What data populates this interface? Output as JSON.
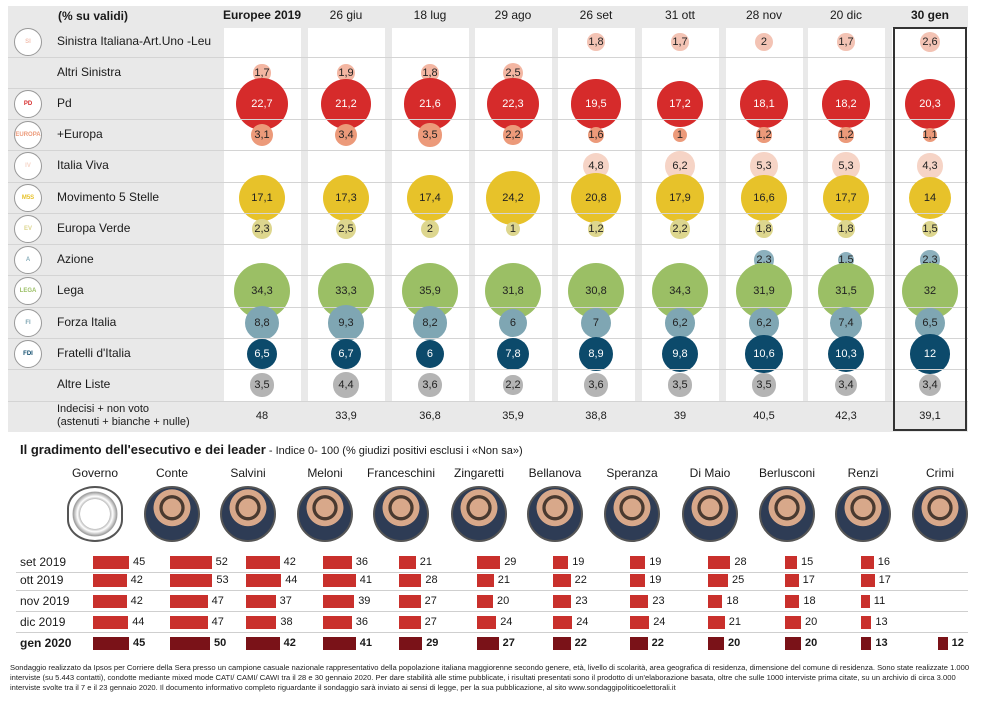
{
  "table": {
    "header_label": "(% su validi)",
    "columns": [
      "Europee 2019",
      "26 giu",
      "18 lug",
      "29 ago",
      "26 set",
      "31 ott",
      "28 nov",
      "20 dic",
      "30 gen"
    ],
    "parties": [
      {
        "name": "Sinistra Italiana-Art.Uno -Leu",
        "values": [
          null,
          null,
          null,
          null,
          1.8,
          1.7,
          2,
          1.7,
          2.6
        ],
        "color": "#f3c3b4",
        "logo": "SI"
      },
      {
        "name": "Altri Sinistra",
        "values": [
          1.7,
          1.9,
          1.8,
          2.5,
          null,
          null,
          null,
          null,
          null
        ],
        "color": "#f3b6a2",
        "logo": ""
      },
      {
        "name": "Pd",
        "values": [
          22.7,
          21.2,
          21.6,
          22.3,
          19.5,
          17.2,
          18.1,
          18.2,
          20.3
        ],
        "color": "#d62b2b",
        "logo": "PD"
      },
      {
        "name": "+Europa",
        "values": [
          3.1,
          3.4,
          3.5,
          2.2,
          1.6,
          1,
          1.2,
          1.2,
          1.1
        ],
        "color": "#ec9a7a",
        "logo": "EUROPA"
      },
      {
        "name": "Italia Viva",
        "values": [
          null,
          null,
          null,
          null,
          4.8,
          6.2,
          5.3,
          5.3,
          4.3
        ],
        "color": "#f6d4c6",
        "logo": "IV"
      },
      {
        "name": "Movimento 5 Stelle",
        "values": [
          17.1,
          17.3,
          17.4,
          24.2,
          20.8,
          17.9,
          16.6,
          17.7,
          14
        ],
        "color": "#e7c22a",
        "logo": "M5S"
      },
      {
        "name": "Europa Verde",
        "values": [
          2.3,
          2.5,
          2,
          1,
          1.2,
          2.2,
          1.8,
          1.8,
          1.5
        ],
        "color": "#ddd68e",
        "logo": "EV"
      },
      {
        "name": "Azione",
        "values": [
          null,
          null,
          null,
          null,
          null,
          null,
          2.3,
          1.5,
          2.3
        ],
        "color": "#8cb0bd",
        "logo": "A"
      },
      {
        "name": "Lega",
        "values": [
          34.3,
          33.3,
          35.9,
          31.8,
          30.8,
          34.3,
          31.9,
          31.5,
          32
        ],
        "color": "#9bbf65",
        "logo": "LEGA"
      },
      {
        "name": "Forza Italia",
        "values": [
          8.8,
          9.3,
          8.2,
          6,
          7,
          6.2,
          6.2,
          7.4,
          6.5
        ],
        "color": "#7fa6b3",
        "logo": "FI"
      },
      {
        "name": "Fratelli d'Italia",
        "values": [
          6.5,
          6.7,
          6,
          7.8,
          8.9,
          9.8,
          10.6,
          10.3,
          12
        ],
        "color": "#0c4a6b",
        "logo": "FDI"
      },
      {
        "name": "Altre Liste",
        "values": [
          3.5,
          4.4,
          3.6,
          2.2,
          3.6,
          3.5,
          3.5,
          3.4,
          3.4
        ],
        "color": "#b4b4b4",
        "logo": ""
      }
    ],
    "footer_label_1": "Indecisi  + non voto",
    "footer_label_2": "(astenuti  + bianche  + nulle)",
    "footer_values": [
      48,
      33.9,
      36.8,
      35.9,
      38.8,
      39,
      40.5,
      42.3,
      39.1
    ]
  },
  "approval": {
    "title": "Il gradimento dell'esecutivo e dei leader",
    "subtitle": " - Indice 0- 100 (% giudizi positivi esclusi i «Non sa»)",
    "leaders": [
      "Governo",
      "Conte",
      "Salvini",
      "Meloni",
      "Franceschini",
      "Zingaretti",
      "Bellanova",
      "Speranza",
      "Di Maio",
      "Berlusconi",
      "Renzi",
      "Crimi"
    ],
    "months": [
      "set 2019",
      "ott 2019",
      "nov 2019",
      "dic 2019",
      "gen 2020"
    ],
    "values": [
      [
        45,
        52,
        42,
        36,
        21,
        29,
        19,
        19,
        28,
        15,
        16,
        null
      ],
      [
        42,
        53,
        44,
        41,
        28,
        21,
        22,
        19,
        25,
        17,
        17,
        null
      ],
      [
        42,
        47,
        37,
        39,
        27,
        20,
        23,
        23,
        18,
        18,
        11,
        null
      ],
      [
        44,
        47,
        38,
        36,
        27,
        24,
        24,
        24,
        21,
        20,
        13,
        null
      ],
      [
        45,
        50,
        42,
        41,
        29,
        27,
        22,
        22,
        20,
        20,
        13,
        12
      ]
    ],
    "colors": {
      "bar": "#c9302c",
      "bar_latest": "#7a1218"
    }
  },
  "footnote": "Sondaggio realizzato da Ipsos per Corriere della Sera presso un campione casuale nazionale rappresentativo della popolazione italiana maggiorenne secondo genere, età, livello di scolarità, area geografica di residenza, dimensione del comune di residenza. Sono state realizzate 1.000 interviste (su 5.443 contatti), condotte mediante mixed mode CATI/ CAMI/ CAWI  tra il 28 e 30 gennaio 2020. Per dare stabilità alle stime pubblicate, i risultati presentati sono il prodotto di un'elaborazione basata, oltre che sulle 1000 interviste prima citate, su un archivio di circa 3.000 interviste svolte tra il 7 e il 23 gennaio 2020. Il documento informativo completo riguardante il sondaggio sarà inviato ai sensi di legge, per la sua pubblicazione, al sito www.sondaggipoliticoelettorali.it",
  "chart_data": [
    {
      "type": "table",
      "title": "(% su validi)",
      "categories": [
        "Europee 2019",
        "26 giu",
        "18 lug",
        "29 ago",
        "26 set",
        "31 ott",
        "28 nov",
        "20 dic",
        "30 gen"
      ],
      "series": [
        {
          "name": "Sinistra Italiana-Art.Uno -Leu",
          "values": [
            null,
            null,
            null,
            null,
            1.8,
            1.7,
            2,
            1.7,
            2.6
          ]
        },
        {
          "name": "Altri Sinistra",
          "values": [
            1.7,
            1.9,
            1.8,
            2.5,
            null,
            null,
            null,
            null,
            null
          ]
        },
        {
          "name": "Pd",
          "values": [
            22.7,
            21.2,
            21.6,
            22.3,
            19.5,
            17.2,
            18.1,
            18.2,
            20.3
          ]
        },
        {
          "name": "+Europa",
          "values": [
            3.1,
            3.4,
            3.5,
            2.2,
            1.6,
            1,
            1.2,
            1.2,
            1.1
          ]
        },
        {
          "name": "Italia Viva",
          "values": [
            null,
            null,
            null,
            null,
            4.8,
            6.2,
            5.3,
            5.3,
            4.3
          ]
        },
        {
          "name": "Movimento 5 Stelle",
          "values": [
            17.1,
            17.3,
            17.4,
            24.2,
            20.8,
            17.9,
            16.6,
            17.7,
            14
          ]
        },
        {
          "name": "Europa Verde",
          "values": [
            2.3,
            2.5,
            2,
            1,
            1.2,
            2.2,
            1.8,
            1.8,
            1.5
          ]
        },
        {
          "name": "Azione",
          "values": [
            null,
            null,
            null,
            null,
            null,
            null,
            2.3,
            1.5,
            2.3
          ]
        },
        {
          "name": "Lega",
          "values": [
            34.3,
            33.3,
            35.9,
            31.8,
            30.8,
            34.3,
            31.9,
            31.5,
            32
          ]
        },
        {
          "name": "Forza Italia",
          "values": [
            8.8,
            9.3,
            8.2,
            6,
            7,
            6.2,
            6.2,
            7.4,
            6.5
          ]
        },
        {
          "name": "Fratelli d'Italia",
          "values": [
            6.5,
            6.7,
            6,
            7.8,
            8.9,
            9.8,
            10.6,
            10.3,
            12
          ]
        },
        {
          "name": "Altre Liste",
          "values": [
            3.5,
            4.4,
            3.6,
            2.2,
            3.6,
            3.5,
            3.5,
            3.4,
            3.4
          ]
        },
        {
          "name": "Indecisi  + non voto (astenuti  + bianche  + nulle)",
          "values": [
            48,
            33.9,
            36.8,
            35.9,
            38.8,
            39,
            40.5,
            42.3,
            39.1
          ]
        }
      ]
    },
    {
      "type": "bar",
      "title": "Il gradimento dell'esecutivo e dei leader",
      "categories": [
        "Governo",
        "Conte",
        "Salvini",
        "Meloni",
        "Franceschini",
        "Zingaretti",
        "Bellanova",
        "Speranza",
        "Di Maio",
        "Berlusconi",
        "Renzi",
        "Crimi"
      ],
      "series": [
        {
          "name": "set 2019",
          "values": [
            45,
            52,
            42,
            36,
            21,
            29,
            19,
            19,
            28,
            15,
            16,
            null
          ]
        },
        {
          "name": "ott 2019",
          "values": [
            42,
            53,
            44,
            41,
            28,
            21,
            22,
            19,
            25,
            17,
            17,
            null
          ]
        },
        {
          "name": "nov 2019",
          "values": [
            42,
            47,
            37,
            39,
            27,
            20,
            23,
            23,
            18,
            18,
            11,
            null
          ]
        },
        {
          "name": "dic 2019",
          "values": [
            44,
            47,
            38,
            36,
            27,
            24,
            24,
            24,
            21,
            20,
            13,
            null
          ]
        },
        {
          "name": "gen 2020",
          "values": [
            45,
            50,
            42,
            41,
            29,
            27,
            22,
            22,
            20,
            20,
            13,
            12
          ]
        }
      ]
    }
  ]
}
